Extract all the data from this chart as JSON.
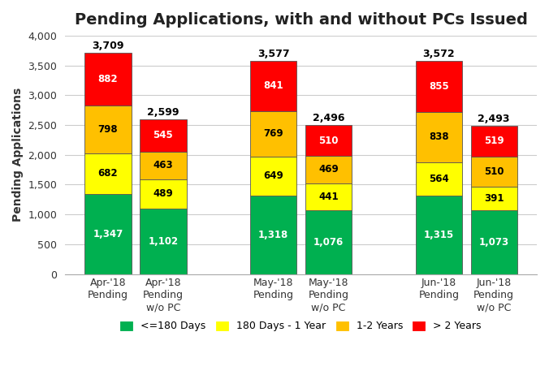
{
  "title": "Pending Applications, with and without PCs Issued",
  "ylabel": "Pending Applications",
  "categories": [
    "Apr-'18\nPending",
    "Apr-'18\nPending\nw/o PC",
    "May-'18\nPending",
    "May-'18\nPending\nw/o PC",
    "Jun-'18\nPending",
    "Jun-'18\nPending\nw/o PC"
  ],
  "totals": [
    3709,
    2599,
    3577,
    2496,
    3572,
    2493
  ],
  "segments": {
    "<=180 Days": [
      1347,
      1102,
      1318,
      1076,
      1315,
      1073
    ],
    "180 Days - 1 Year": [
      682,
      489,
      649,
      441,
      564,
      391
    ],
    "1-2 Years": [
      798,
      463,
      769,
      469,
      838,
      510
    ],
    "> 2 Years": [
      882,
      545,
      841,
      510,
      855,
      519
    ]
  },
  "colors": {
    "<=180 Days": "#00B050",
    "180 Days - 1 Year": "#FFFF00",
    "1-2 Years": "#FFC000",
    "> 2 Years": "#FF0000"
  },
  "legend_labels": [
    "<=180 Days",
    "180 Days - 1 Year",
    "1-2 Years",
    "> 2 Years"
  ],
  "ylim": [
    0,
    4000
  ],
  "yticks": [
    0,
    500,
    1000,
    1500,
    2000,
    2500,
    3000,
    3500,
    4000
  ],
  "bar_width": 0.38,
  "group_positions": [
    0,
    0.45,
    1.35,
    1.8,
    2.7,
    3.15
  ],
  "figsize": [
    6.76,
    4.78
  ],
  "dpi": 100,
  "title_fontsize": 14,
  "label_fontsize": 8.5,
  "axis_label_fontsize": 10,
  "tick_fontsize": 9,
  "legend_fontsize": 9,
  "background_color": "#FFFFFF",
  "grid_color": "#CCCCCC",
  "text_color_light": "#FFFFFF",
  "text_color_dark": "#000000",
  "total_label_fontsize": 9,
  "spine_color": "#AAAAAA"
}
